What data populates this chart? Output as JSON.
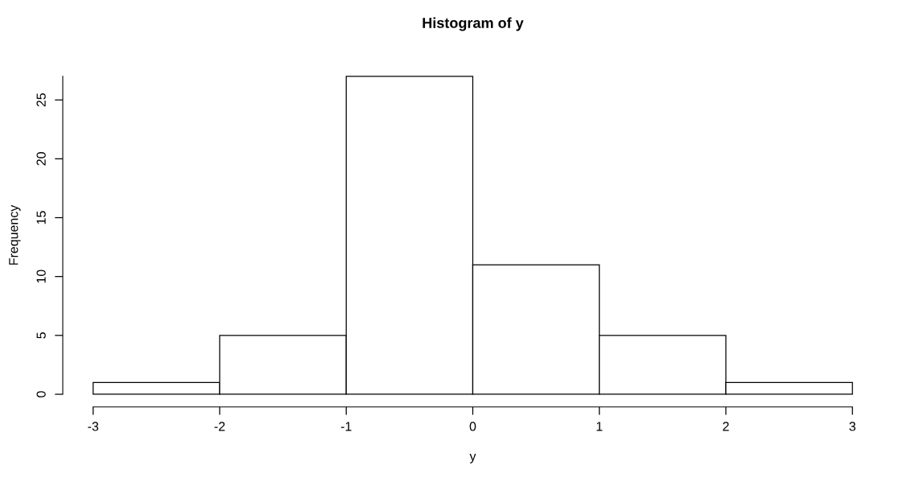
{
  "chart_data": {
    "type": "histogram",
    "title": "Histogram of y",
    "xlabel": "y",
    "ylabel": "Frequency",
    "bins": [
      -3,
      -2,
      -1,
      0,
      1,
      2,
      3
    ],
    "values": [
      1,
      5,
      27,
      11,
      5,
      1
    ],
    "color": "#ffffff",
    "xlim": [
      -3,
      3
    ],
    "ylim": [
      0,
      27
    ],
    "xticks": [
      -3,
      -2,
      -1,
      0,
      1,
      2,
      3
    ],
    "yticks": [
      0,
      5,
      10,
      15,
      20,
      25
    ],
    "grid": false
  }
}
